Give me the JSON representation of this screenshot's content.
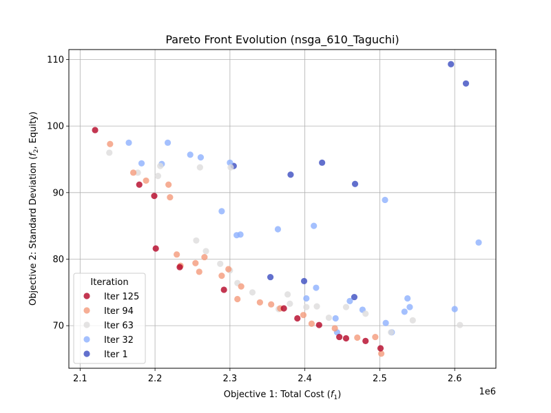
{
  "chart_data": {
    "type": "scatter",
    "title": "Pareto Front Evolution (nsga_610_Taguchi)",
    "xlabel_main": "Objective 1: Total Cost (",
    "xlabel_var": "f",
    "xlabel_sub": "1",
    "xlabel_end": ")",
    "ylabel_main": "Objective 2: Standard Deviation (",
    "ylabel_var": "f",
    "ylabel_sub": "2",
    "ylabel_end": ", Equity)",
    "x_offset_label": "1e6",
    "xlim": [
      2.085,
      2.655
    ],
    "ylim": [
      63.6,
      111.5
    ],
    "x_ticks": [
      2.1,
      2.2,
      2.3,
      2.4,
      2.5,
      2.6
    ],
    "x_tick_labels": [
      "2.1",
      "2.2",
      "2.3",
      "2.4",
      "2.5",
      "2.6"
    ],
    "y_ticks": [
      70,
      80,
      90,
      100,
      110
    ],
    "y_tick_labels": [
      "70",
      "80",
      "90",
      "100",
      "110"
    ],
    "grid": true,
    "legend": {
      "title": "Iteration",
      "placement": "lower-left",
      "entries": [
        "Iter 125",
        "Iter 94",
        "Iter 63",
        "Iter 32",
        "Iter 1"
      ]
    },
    "series": [
      {
        "name": "Iter 1",
        "color": "#3b4cc0",
        "points": [
          [
            2.595,
            109.3
          ],
          [
            2.615,
            106.4
          ],
          [
            2.305,
            94.0
          ],
          [
            2.423,
            94.5
          ],
          [
            2.381,
            92.7
          ],
          [
            2.467,
            91.3
          ],
          [
            2.354,
            77.3
          ],
          [
            2.399,
            76.7
          ],
          [
            2.466,
            74.3
          ]
        ]
      },
      {
        "name": "Iter 32",
        "color": "#8db0fe",
        "points": [
          [
            2.165,
            97.5
          ],
          [
            2.217,
            97.5
          ],
          [
            2.182,
            94.4
          ],
          [
            2.209,
            94.3
          ],
          [
            2.247,
            95.7
          ],
          [
            2.261,
            95.3
          ],
          [
            2.3,
            94.5
          ],
          [
            2.289,
            87.2
          ],
          [
            2.507,
            88.9
          ],
          [
            2.309,
            83.6
          ],
          [
            2.314,
            83.7
          ],
          [
            2.364,
            84.5
          ],
          [
            2.412,
            85.0
          ],
          [
            2.632,
            82.5
          ],
          [
            2.415,
            75.7
          ],
          [
            2.402,
            74.1
          ],
          [
            2.46,
            73.7
          ],
          [
            2.537,
            74.1
          ],
          [
            2.54,
            72.8
          ],
          [
            2.6,
            72.5
          ],
          [
            2.477,
            72.4
          ],
          [
            2.533,
            72.1
          ],
          [
            2.441,
            71.1
          ],
          [
            2.508,
            70.4
          ],
          [
            2.516,
            69.0
          ],
          [
            2.443,
            69.0
          ]
        ]
      },
      {
        "name": "Iter 63",
        "color": "#dddcdc",
        "points": [
          [
            2.139,
            96.0
          ],
          [
            2.204,
            92.5
          ],
          [
            2.207,
            94.0
          ],
          [
            2.26,
            93.8
          ],
          [
            2.301,
            93.8
          ],
          [
            2.177,
            93.0
          ],
          [
            2.255,
            82.8
          ],
          [
            2.268,
            81.2
          ],
          [
            2.287,
            79.3
          ],
          [
            2.3,
            78.3
          ],
          [
            2.31,
            76.4
          ],
          [
            2.33,
            75.0
          ],
          [
            2.377,
            74.7
          ],
          [
            2.402,
            72.8
          ],
          [
            2.416,
            72.9
          ],
          [
            2.455,
            72.8
          ],
          [
            2.481,
            71.8
          ],
          [
            2.544,
            70.8
          ],
          [
            2.607,
            70.1
          ],
          [
            2.515,
            69.0
          ],
          [
            2.365,
            72.5
          ],
          [
            2.38,
            73.3
          ],
          [
            2.432,
            71.2
          ]
        ]
      },
      {
        "name": "Iter 94",
        "color": "#f49a7b",
        "points": [
          [
            2.14,
            97.3
          ],
          [
            2.171,
            93.0
          ],
          [
            2.188,
            91.8
          ],
          [
            2.218,
            91.2
          ],
          [
            2.22,
            89.3
          ],
          [
            2.229,
            80.7
          ],
          [
            2.234,
            79.0
          ],
          [
            2.254,
            79.4
          ],
          [
            2.266,
            80.3
          ],
          [
            2.259,
            78.1
          ],
          [
            2.289,
            77.5
          ],
          [
            2.298,
            78.5
          ],
          [
            2.315,
            75.9
          ],
          [
            2.31,
            74.0
          ],
          [
            2.34,
            73.5
          ],
          [
            2.355,
            73.2
          ],
          [
            2.367,
            72.6
          ],
          [
            2.398,
            71.6
          ],
          [
            2.409,
            70.3
          ],
          [
            2.44,
            69.6
          ],
          [
            2.47,
            68.2
          ],
          [
            2.494,
            68.3
          ],
          [
            2.502,
            65.8
          ]
        ]
      },
      {
        "name": "Iter 125",
        "color": "#b40426",
        "points": [
          [
            2.12,
            99.4
          ],
          [
            2.179,
            91.2
          ],
          [
            2.199,
            89.5
          ],
          [
            2.201,
            81.6
          ],
          [
            2.233,
            78.8
          ],
          [
            2.292,
            75.4
          ],
          [
            2.372,
            72.6
          ],
          [
            2.39,
            71.1
          ],
          [
            2.419,
            70.1
          ],
          [
            2.446,
            68.3
          ],
          [
            2.455,
            68.1
          ],
          [
            2.481,
            67.7
          ],
          [
            2.501,
            66.6
          ]
        ]
      }
    ]
  }
}
